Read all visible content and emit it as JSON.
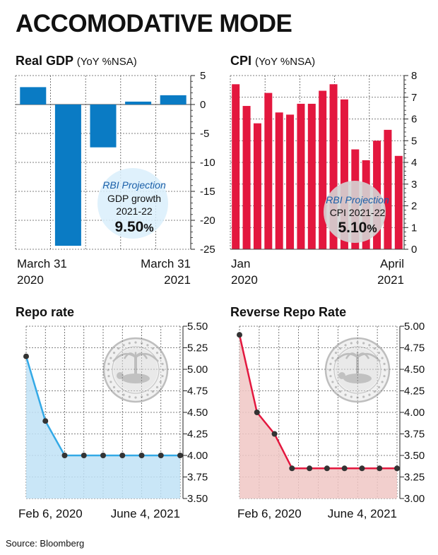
{
  "title": "ACCOMODATIVE MODE",
  "source": "Source: Bloomberg",
  "colors": {
    "gdp_bar": "#0a7bc4",
    "cpi_bar": "#e3173e",
    "repo_line": "#33a9e6",
    "repo_fill": "#bfe2f6",
    "reverse_line": "#e3173e",
    "reverse_fill": "#f0c7c4",
    "grid": "#555555"
  },
  "chart_data": [
    {
      "id": "gdp",
      "type": "bar",
      "title": "Real GDP",
      "unit": "(YoY %NSA)",
      "x_labels": [
        [
          "March 31",
          "2020"
        ],
        [
          "March 31",
          "2021"
        ]
      ],
      "values": [
        3.0,
        -24.4,
        -7.4,
        0.5,
        1.6
      ],
      "ylim": [
        -25,
        5
      ],
      "yticks": [
        "5",
        "0",
        "-5",
        "-10",
        "-15",
        "-20",
        "-25"
      ],
      "ytick_values": [
        5,
        0,
        -5,
        -10,
        -15,
        -20,
        -25
      ],
      "annotation": {
        "title": "RBI Projection",
        "line1": "GDP growth",
        "line2": "2021-22",
        "value": "9.50",
        "suffix": "%"
      }
    },
    {
      "id": "cpi",
      "type": "bar",
      "title": "CPI",
      "unit": "(YoY %NSA)",
      "x_labels": [
        [
          "Jan",
          "2020"
        ],
        [
          "April",
          "2021"
        ]
      ],
      "values": [
        7.6,
        6.6,
        5.8,
        7.2,
        6.3,
        6.2,
        6.7,
        6.7,
        7.3,
        7.6,
        6.9,
        4.6,
        4.1,
        5.0,
        5.5,
        4.3
      ],
      "ylim": [
        0,
        8
      ],
      "yticks": [
        "8",
        "7",
        "6",
        "5",
        "4",
        "3",
        "2",
        "1",
        "0"
      ],
      "ytick_values": [
        8,
        7,
        6,
        5,
        4,
        3,
        2,
        1,
        0
      ],
      "annotation": {
        "title": "RBI Projection",
        "line1": "CPI 2021-22",
        "value": "5.10",
        "suffix": "%"
      }
    },
    {
      "id": "repo",
      "type": "area",
      "title": "Repo rate",
      "x_labels": [
        "Feb 6, 2020",
        "June 4, 2021"
      ],
      "values": [
        5.15,
        4.4,
        4.0,
        4.0,
        4.0,
        4.0,
        4.0,
        4.0,
        4.0
      ],
      "ylim": [
        3.5,
        5.5
      ],
      "yticks": [
        "5.50",
        "5.25",
        "5.00",
        "4.75",
        "4.50",
        "4.25",
        "4.00",
        "3.75",
        "3.50"
      ],
      "ytick_values": [
        5.5,
        5.25,
        5.0,
        4.75,
        4.5,
        4.25,
        4.0,
        3.75,
        3.5
      ]
    },
    {
      "id": "reverse",
      "type": "area",
      "title": "Reverse Repo Rate",
      "x_labels": [
        "Feb 6, 2020",
        "June 4, 2021"
      ],
      "values": [
        4.9,
        4.0,
        3.75,
        3.35,
        3.35,
        3.35,
        3.35,
        3.35,
        3.35,
        3.35
      ],
      "ylim": [
        3.0,
        5.0
      ],
      "yticks": [
        "5.00",
        "4.75",
        "4.50",
        "4.25",
        "4.00",
        "3.75",
        "3.50",
        "3.25",
        "3.00"
      ],
      "ytick_values": [
        5.0,
        4.75,
        4.5,
        4.25,
        4.0,
        3.75,
        3.5,
        3.25,
        3.0
      ]
    }
  ]
}
